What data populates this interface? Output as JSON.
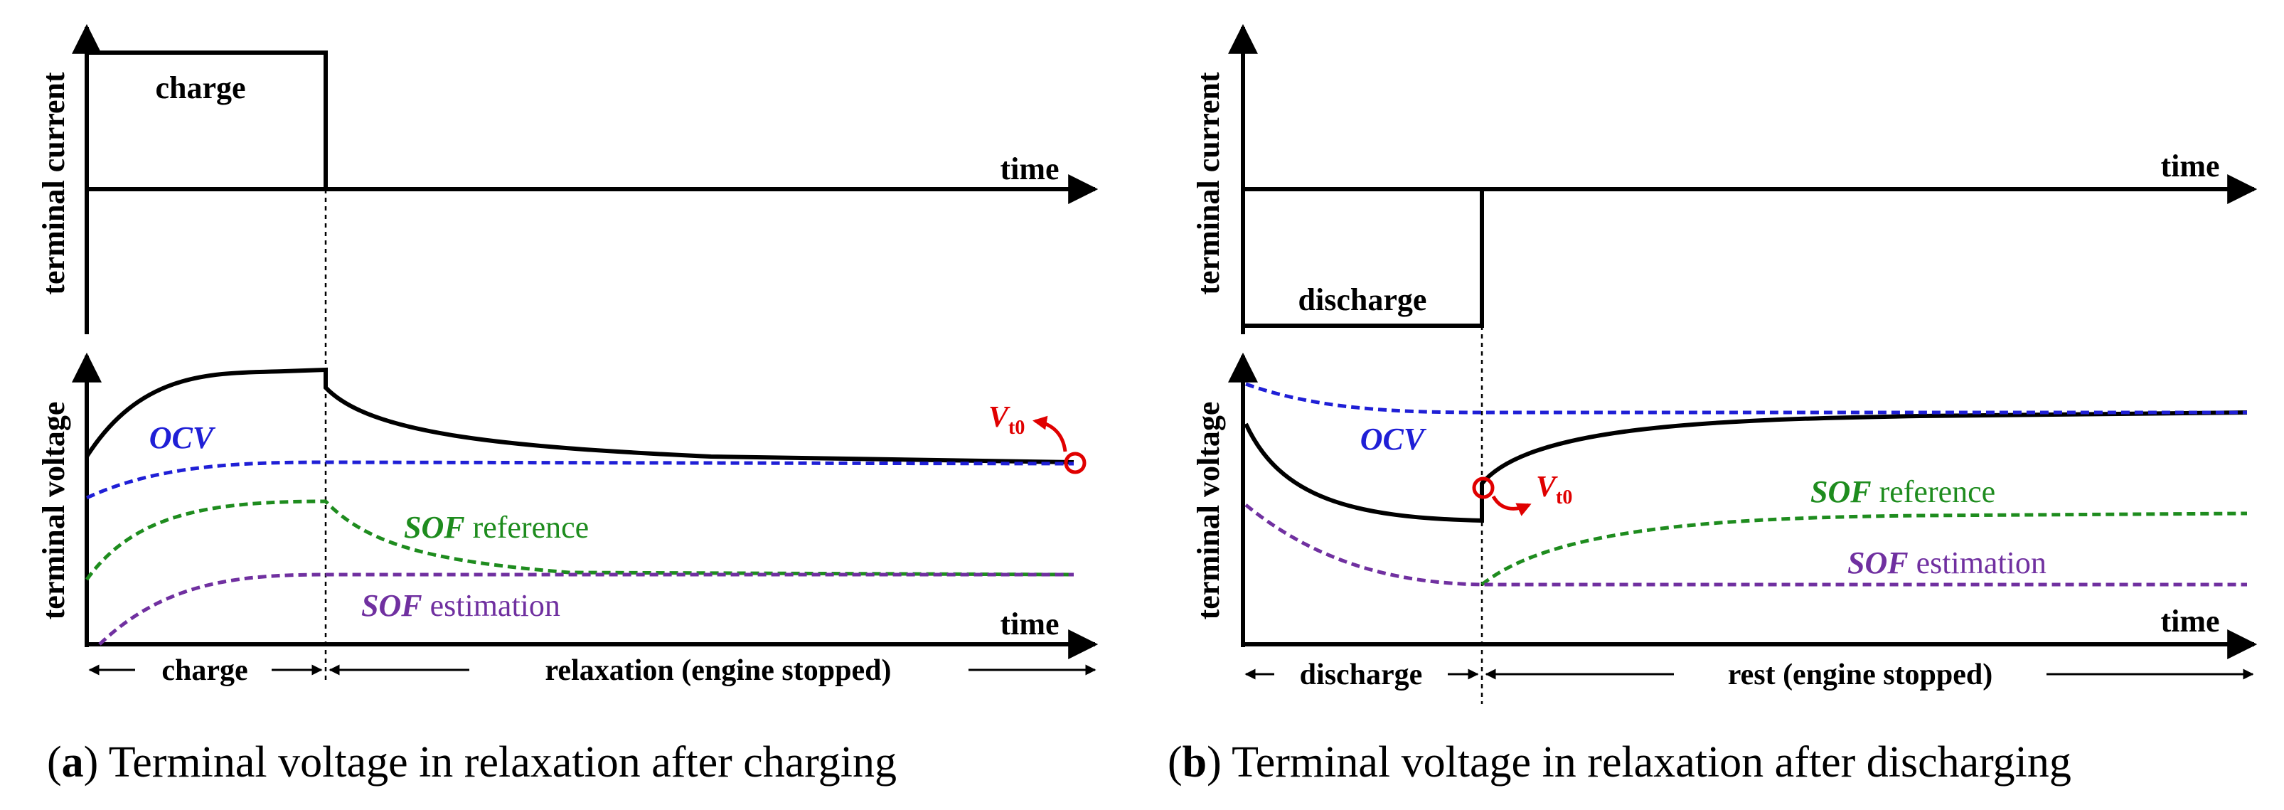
{
  "panel_a": {
    "current_axis_label": "terminal current",
    "voltage_axis_label": "terminal voltage",
    "time_label_top": "time",
    "time_label_bottom": "time",
    "pulse_label": "charge",
    "ocv_label": "OCV",
    "sof_ref_italic": "SOF",
    "sof_ref_rest": " reference",
    "sof_est_italic": "SOF",
    "sof_est_rest": " estimation",
    "vt0_main": "V",
    "vt0_sub": "t0",
    "phase1_label": "charge",
    "phase2_label": "relaxation (engine stopped)",
    "caption_letter": "a",
    "caption_text": " Terminal voltage in relaxation after charging"
  },
  "panel_b": {
    "current_axis_label": "terminal current",
    "voltage_axis_label": "terminal voltage",
    "time_label_top": "time",
    "time_label_bottom": "time",
    "pulse_label": "discharge",
    "ocv_label": "OCV",
    "sof_ref_italic": "SOF",
    "sof_ref_rest": " reference",
    "sof_est_italic": "SOF",
    "sof_est_rest": " estimation",
    "vt0_main": "V",
    "vt0_sub": "t0",
    "phase1_label": "discharge",
    "phase2_label": "rest (engine stopped)",
    "caption_letter": "b",
    "caption_text": " Terminal voltage in relaxation after discharging"
  },
  "colors": {
    "terminal": "#000000",
    "ocv": "#1f1fd6",
    "sof_reference": "#1e8c1e",
    "sof_estimation": "#7030a0",
    "vt0": "#e00000"
  }
}
